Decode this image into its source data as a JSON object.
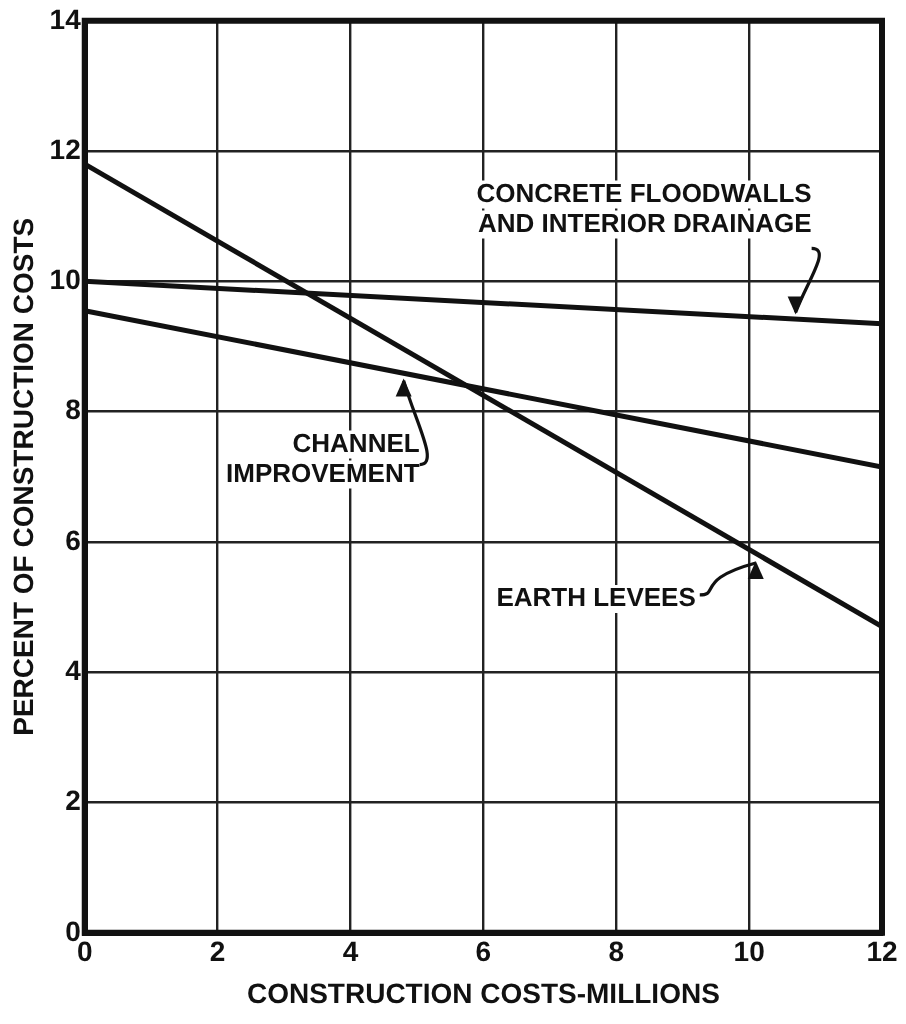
{
  "chart_data": {
    "type": "line",
    "xlabel": "CONSTRUCTION COSTS-MILLIONS",
    "ylabel": "PERCENT OF CONSTRUCTION COSTS",
    "xlim": [
      0,
      12
    ],
    "xticks": [
      0,
      2,
      4,
      6,
      8,
      10,
      12
    ],
    "ylim": [
      0,
      14
    ],
    "yticks": [
      0,
      2,
      4,
      6,
      8,
      10,
      12,
      14
    ],
    "grid": true,
    "legend": false,
    "marker": "none",
    "line_style": "solid",
    "x": [
      0,
      12
    ],
    "series": [
      {
        "color": "#111111",
        "values": [
          10.0,
          9.35
        ]
      },
      {
        "color": "#111111",
        "values": [
          9.55,
          7.15
        ]
      },
      {
        "color": "#111111",
        "values": [
          11.8,
          4.7
        ]
      }
    ],
    "annotations": [
      {
        "text": "CONCRETE FLOODWALLS\nAND INTERIOR DRAINAGE",
        "x": 10.7,
        "y": 9.4
      },
      {
        "text": "CHANNEL\nIMPROVEMENT",
        "x": 4.8,
        "y": 8.6
      },
      {
        "text": "EARTH LEVEES",
        "x": 10.1,
        "y": 5.8
      }
    ]
  }
}
